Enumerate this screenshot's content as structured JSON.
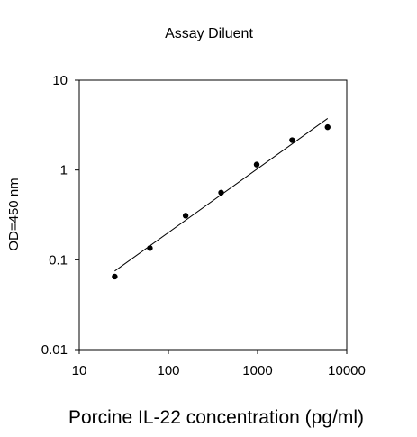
{
  "chart_data": {
    "type": "scatter",
    "title": "Assay Diluent",
    "xlabel": "Porcine IL-22 concentration (pg/ml)",
    "ylabel": "OD=450 nm",
    "xscale": "log",
    "yscale": "log",
    "xlim": [
      10,
      10000
    ],
    "ylim": [
      0.01,
      10
    ],
    "xticks": [
      10,
      100,
      1000,
      10000
    ],
    "xtick_labels": [
      "10",
      "100",
      "1000",
      "10000"
    ],
    "yticks": [
      0.01,
      0.1,
      1,
      10
    ],
    "ytick_labels": [
      "0.01",
      "0.1",
      "1",
      "10"
    ],
    "grid": false,
    "series": [
      {
        "x": [
          25,
          62,
          156,
          390,
          977,
          2441,
          6103
        ],
        "y": [
          0.065,
          0.135,
          0.31,
          0.56,
          1.15,
          2.15,
          3.0
        ]
      }
    ],
    "fit_line": {
      "x": [
        25,
        6103
      ],
      "y": [
        0.075,
        3.75
      ]
    },
    "colors": {
      "points": "#000000",
      "line": "#000000",
      "axes": "#000000"
    }
  }
}
